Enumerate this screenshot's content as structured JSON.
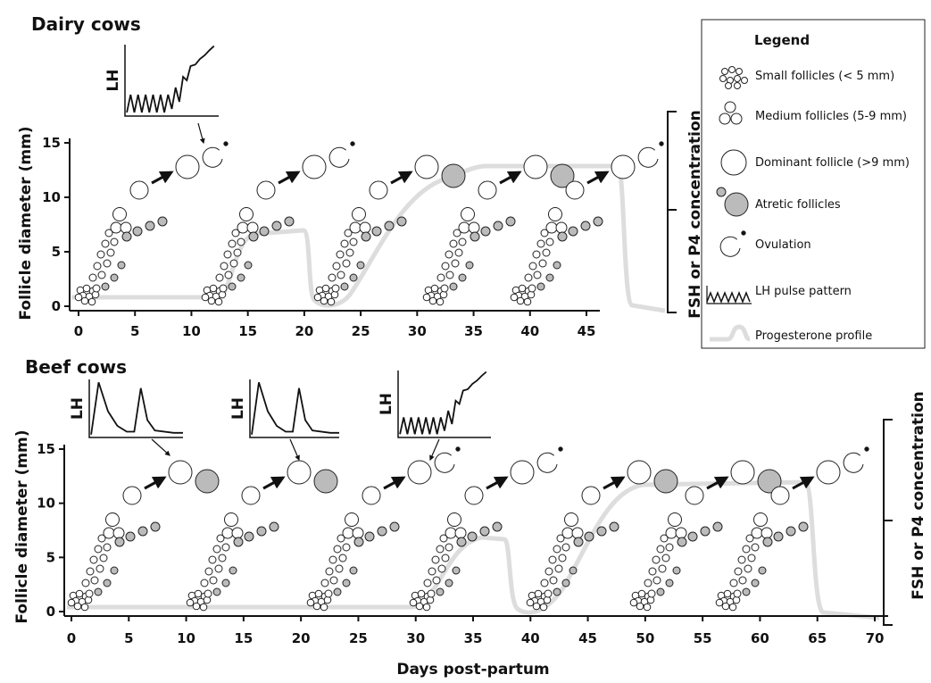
{
  "panels": [
    {
      "title": "Dairy cows",
      "lh_label": "LH",
      "y_axis_label": "Follicle diameter (mm)",
      "right_axis_label": "FSH or P4 concentration",
      "yticks": [
        0,
        5,
        10,
        15
      ],
      "xticks": [
        0,
        5,
        10,
        15,
        20,
        25,
        30,
        35,
        40,
        45
      ]
    },
    {
      "title": "Beef cows",
      "lh_label": "LH",
      "y_axis_label": "Follicle diameter (mm)",
      "right_axis_label": "FSH or P4 concentration",
      "yticks": [
        0,
        5,
        10,
        15
      ],
      "xticks": [
        0,
        5,
        10,
        15,
        20,
        25,
        30,
        35,
        40,
        45,
        50,
        55,
        60,
        65,
        70
      ]
    }
  ],
  "x_axis_label": "Days post-partum",
  "legend": {
    "title": "Legend",
    "items": [
      "Small follicles (< 5 mm)",
      "Medium follicles (5-9 mm)",
      "Dominant follicle (>9 mm)",
      "Atretic follicles",
      "Ovulation",
      "LH pulse pattern",
      "Progesterone profile"
    ]
  }
}
